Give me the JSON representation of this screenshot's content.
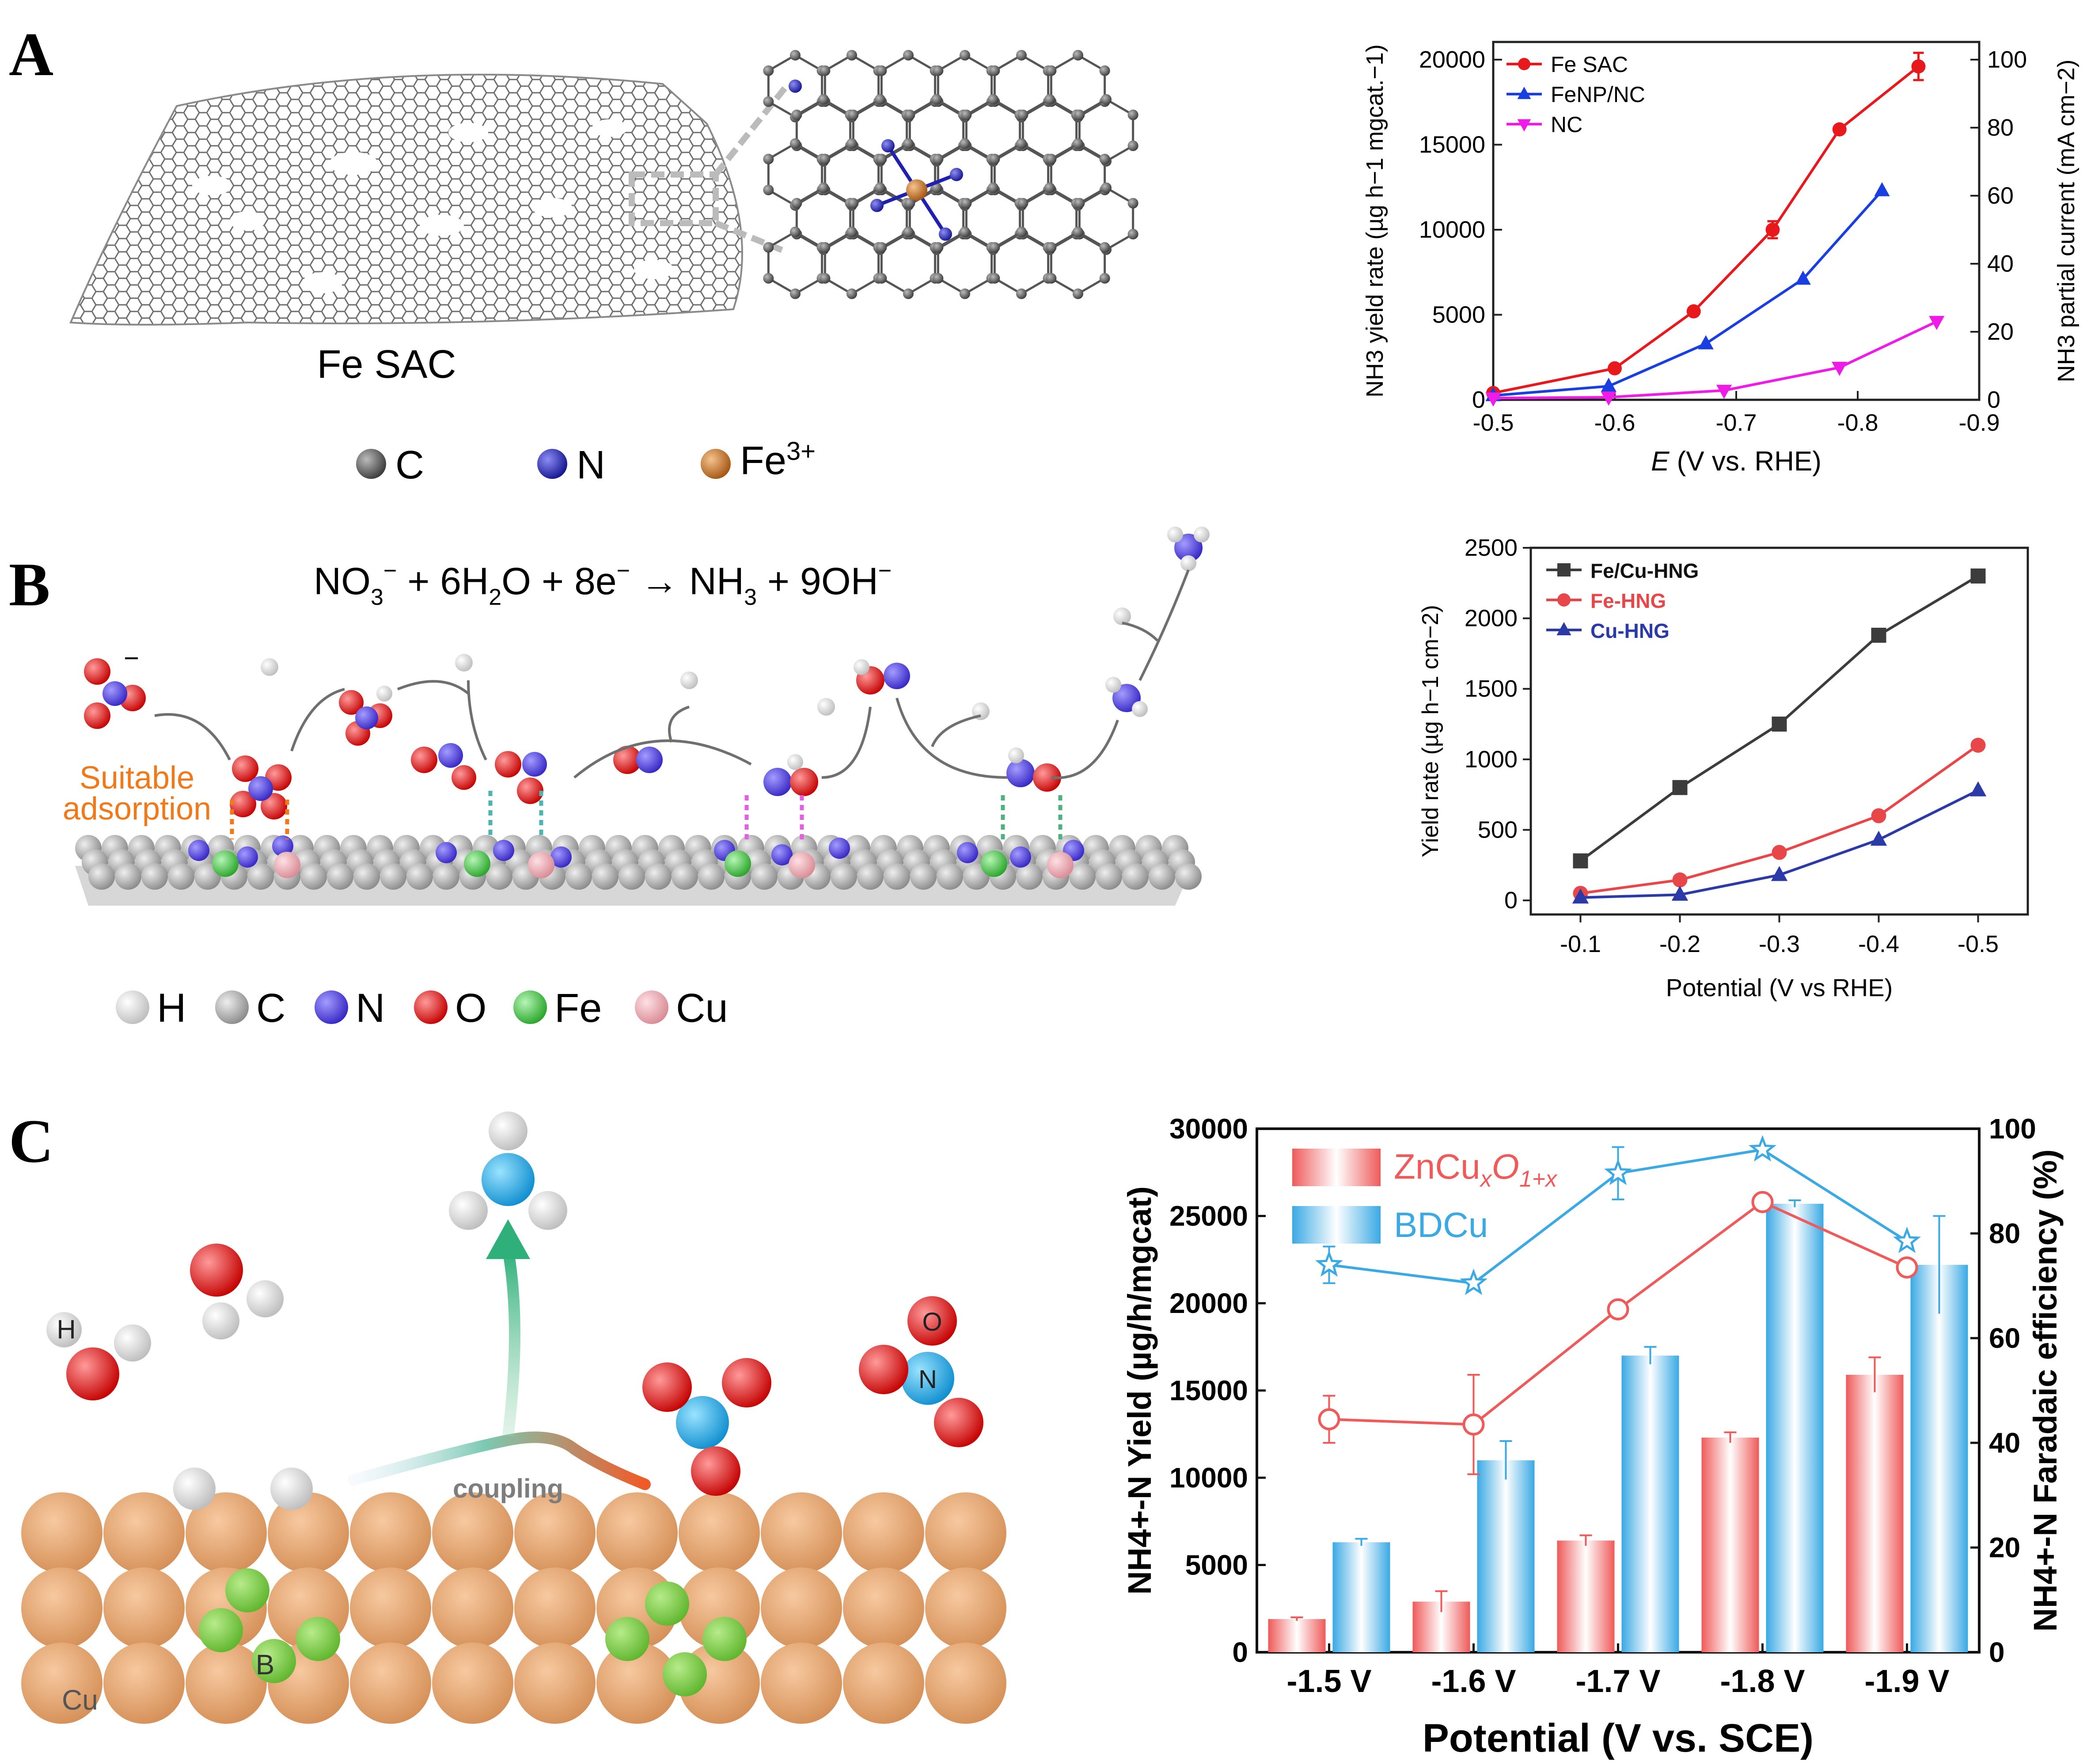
{
  "panels": {
    "A": {
      "letter": "A",
      "sheet_label": "Fe SAC",
      "legend": [
        {
          "label": "C",
          "color": "#555555",
          "icon": "carbon-atom"
        },
        {
          "label": "N",
          "color": "#1f1fb0",
          "icon": "nitrogen-atom"
        },
        {
          "label": "Fe",
          "sup": "3+",
          "color": "#c8782c",
          "icon": "iron-atom"
        }
      ]
    },
    "B": {
      "letter": "B",
      "equation": {
        "no3": "NO",
        "no3_sub": "3",
        "no3_sup": "−",
        "plus1": " + 6H",
        "h2o_sub": "2",
        "h2o_rest": "O + 8e",
        "e_sup": "−",
        "arrow": " → NH",
        "nh3_sub": "3",
        "end": " + 9OH",
        "oh_sup": "−"
      },
      "annotation_line1": "Suitable",
      "annotation_line2": "adsorption",
      "legend": [
        {
          "label": "H",
          "color": "#dddddd"
        },
        {
          "label": "C",
          "color": "#bbbbbb"
        },
        {
          "label": "N",
          "color": "#4b3fd8"
        },
        {
          "label": "O",
          "color": "#e01818"
        },
        {
          "label": "Fe",
          "color": "#3cc23c"
        },
        {
          "label": "Cu",
          "color": "#e8a0a8"
        }
      ]
    },
    "C": {
      "letter": "C",
      "coupling_label": "coupling",
      "atom_labels": {
        "H": "H",
        "O": "O",
        "N": "N",
        "B": "B",
        "Cu": "Cu"
      }
    }
  },
  "chart_data": [
    {
      "id": "A",
      "type": "line",
      "xlabel_italic": "E",
      "xlabel_rest": " (V vs. RHE)",
      "ylabel": "NH3 yield rate (µg h−1 mgcat.−1)",
      "y2label": "NH3 partial current (mA cm−2)",
      "xlim": [
        -0.5,
        -0.9
      ],
      "ylim": [
        0,
        20000
      ],
      "y2lim": [
        0,
        100
      ],
      "x_ticks": [
        "-0.5",
        "-0.6",
        "-0.7",
        "-0.8",
        "-0.9"
      ],
      "y_ticks": [
        "0",
        "5000",
        "10000",
        "15000",
        "20000"
      ],
      "y2_ticks": [
        "0",
        "20",
        "40",
        "60",
        "80",
        "100"
      ],
      "series": [
        {
          "name": "Fe SAC",
          "color": "#e8191c",
          "marker": "circle",
          "x": [
            -0.5,
            -0.6,
            -0.665,
            -0.73,
            -0.785,
            -0.85
          ],
          "y": [
            400,
            1850,
            5200,
            10000,
            15900,
            19600
          ],
          "err": [
            0,
            0,
            0,
            500,
            0,
            800
          ]
        },
        {
          "name": "FeNP/NC",
          "color": "#1a3fe0",
          "marker": "triangle-up",
          "x": [
            -0.5,
            -0.595,
            -0.675,
            -0.755,
            -0.82
          ],
          "y": [
            250,
            800,
            3300,
            7100,
            12300
          ]
        },
        {
          "name": "NC",
          "color": "#ef1ce8",
          "marker": "triangle-down",
          "x": [
            -0.5,
            -0.595,
            -0.69,
            -0.785,
            -0.865
          ],
          "y": [
            100,
            150,
            550,
            1900,
            4600
          ]
        }
      ]
    },
    {
      "id": "B",
      "type": "line",
      "xlabel": "Potential (V vs RHE)",
      "ylabel": "Yield rate  (µg h−1 cm−2)",
      "xlim": [
        -0.05,
        -0.55
      ],
      "ylim": [
        -100,
        2500
      ],
      "x_ticks": [
        "-0.1",
        "-0.2",
        "-0.3",
        "-0.4",
        "-0.5"
      ],
      "y_ticks": [
        "0",
        "500",
        "1000",
        "1500",
        "2000",
        "2500"
      ],
      "categories": [
        -0.1,
        -0.2,
        -0.3,
        -0.4,
        -0.5
      ],
      "series": [
        {
          "name": "Fe/Cu-HNG",
          "color": "#3c3c3c",
          "marker": "square",
          "values": [
            280,
            800,
            1250,
            1880,
            2300
          ]
        },
        {
          "name": "Fe-HNG",
          "color": "#e8474a",
          "marker": "circle",
          "values": [
            50,
            145,
            340,
            600,
            1100
          ]
        },
        {
          "name": "Cu-HNG",
          "color": "#2c3aa8",
          "marker": "triangle-up",
          "values": [
            20,
            40,
            180,
            430,
            780
          ]
        }
      ]
    },
    {
      "id": "C",
      "type": "bar",
      "xlabel": "Potential (V vs. SCE)",
      "ylabel": "NH4+-N Yield (µg/h/mgcat)",
      "y2label": "NH4+-N Faradaic efficiency (%)",
      "categories": [
        "-1.5 V",
        "-1.6 V",
        "-1.7 V",
        "-1.8 V",
        "-1.9 V"
      ],
      "ylim": [
        0,
        30000
      ],
      "y2lim": [
        0,
        100
      ],
      "y_ticks": [
        "0",
        "5000",
        "10000",
        "15000",
        "20000",
        "25000",
        "30000"
      ],
      "y2_ticks": [
        "0",
        "20",
        "40",
        "60",
        "80",
        "100"
      ],
      "series": [
        {
          "name": "ZnCuxO1+x",
          "color": "#ef5a5a",
          "yield": [
            1900,
            2900,
            6400,
            12300,
            15900
          ],
          "yield_err": [
            100,
            600,
            300,
            300,
            1000
          ],
          "fe": [
            44.5,
            43.5,
            65.5,
            86,
            73.5
          ],
          "fe_err": [
            4.5,
            9.5,
            0,
            1,
            0
          ]
        },
        {
          "name": "BDCu",
          "color": "#3aa9e4",
          "yield": [
            6300,
            11000,
            17000,
            25700,
            22200
          ],
          "yield_err": [
            200,
            1100,
            500,
            200,
            2800
          ],
          "fe": [
            74,
            70.5,
            91.5,
            96,
            78.5
          ],
          "fe_err": [
            3.5,
            0,
            5,
            0,
            0
          ]
        }
      ]
    }
  ]
}
